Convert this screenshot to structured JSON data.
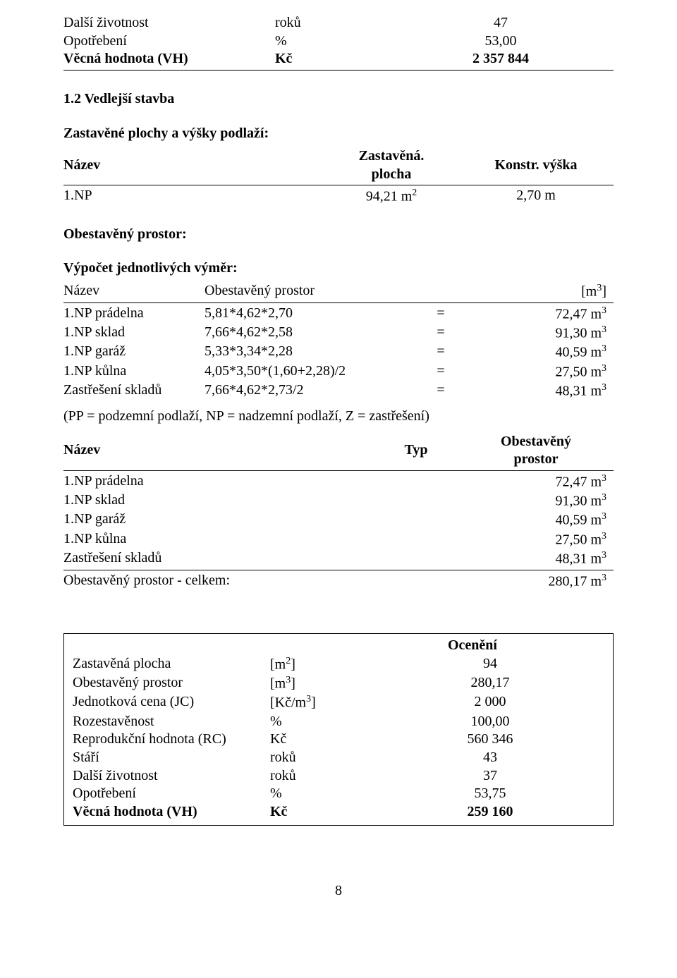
{
  "top_block": {
    "rows": [
      {
        "label": "Další životnost",
        "unit": "roků",
        "value": "47",
        "bold": false
      },
      {
        "label": "Opotřebení",
        "unit": "%",
        "value": "53,00",
        "bold": false
      },
      {
        "label": "Věcná hodnota (VH)",
        "unit": "Kč",
        "value": "2 357 844",
        "bold": true
      }
    ]
  },
  "section": {
    "title": "1.2 Vedlejší stavba",
    "sub_zastavene": "Zastavěné plochy a výšky podlaží:"
  },
  "header_table": {
    "h_nazev": "Název",
    "h_zastavena_top": "Zastavěná.",
    "h_zastavena_bot": "plocha",
    "h_konstr": "Konstr. výška",
    "row": {
      "c1": "1.NP",
      "c2": "94,21 m",
      "c2_sup": "2",
      "c3": "2,70 m"
    }
  },
  "obestaveny_header": "Obestavěný prostor:",
  "vypocet_header": "Výpočet jednotlivých výměr:",
  "vypocet_table": {
    "h_nazev": "Název",
    "h_obest": "Obestavěný prostor",
    "h_unit": "[m",
    "h_unit_sup": "3",
    "h_unit_close": "]",
    "rows": [
      {
        "c1": "1.NP prádelna",
        "c2": "5,81*4,62*2,70",
        "eq": "=",
        "val": "72,47 m",
        "sup": "3"
      },
      {
        "c1": "1.NP sklad",
        "c2": "7,66*4,62*2,58",
        "eq": "=",
        "val": "91,30 m",
        "sup": "3"
      },
      {
        "c1": "1.NP garáž",
        "c2": "5,33*3,34*2,28",
        "eq": "=",
        "val": "40,59 m",
        "sup": "3"
      },
      {
        "c1": "1.NP kůlna",
        "c2": "4,05*3,50*(1,60+2,28)/2",
        "eq": "=",
        "val": "27,50 m",
        "sup": "3"
      },
      {
        "c1": "Zastřešení skladů",
        "c2": "7,66*4,62*2,73/2",
        "eq": "=",
        "val": "48,31 m",
        "sup": "3"
      }
    ]
  },
  "pp_note": "(PP = podzemní podlaží, NP = nadzemní podlaží, Z = zastřešení)",
  "obest_table": {
    "h_nazev": "Název",
    "h_typ": "Typ",
    "h_ob_top": "Obestavěný",
    "h_ob_bot": "prostor",
    "rows": [
      {
        "c1": "1.NP prádelna",
        "val": "72,47 m",
        "sup": "3"
      },
      {
        "c1": "1.NP sklad",
        "val": "91,30 m",
        "sup": "3"
      },
      {
        "c1": "1.NP garáž",
        "val": "40,59 m",
        "sup": "3"
      },
      {
        "c1": "1.NP kůlna",
        "val": "27,50 m",
        "sup": "3"
      },
      {
        "c1": "Zastřešení skladů",
        "val": "48,31 m",
        "sup": "3"
      }
    ],
    "total_label": "Obestavěný prostor - celkem:",
    "total_val": "280,17 m",
    "total_sup": "3"
  },
  "oceneni": {
    "title": "Ocenění",
    "rows": [
      {
        "label": "Zastavěná plocha",
        "unit_pre": "[m",
        "unit_sup": "2",
        "unit_post": "]",
        "value": "94",
        "bold": false
      },
      {
        "label": "Obestavěný prostor",
        "unit_pre": "[m",
        "unit_sup": "3",
        "unit_post": "]",
        "value": "280,17",
        "bold": false
      },
      {
        "label": "Jednotková cena (JC)",
        "unit_pre": "[Kč/m",
        "unit_sup": "3",
        "unit_post": "]",
        "value": "2 000",
        "bold": false
      },
      {
        "label": "Rozestavěnost",
        "unit_pre": "%",
        "unit_sup": "",
        "unit_post": "",
        "value": "100,00",
        "bold": false
      },
      {
        "label": "Reprodukční hodnota (RC)",
        "unit_pre": "Kč",
        "unit_sup": "",
        "unit_post": "",
        "value": "560 346",
        "bold": false
      },
      {
        "label": "Stáří",
        "unit_pre": "roků",
        "unit_sup": "",
        "unit_post": "",
        "value": "43",
        "bold": false
      },
      {
        "label": "Další životnost",
        "unit_pre": "roků",
        "unit_sup": "",
        "unit_post": "",
        "value": "37",
        "bold": false
      },
      {
        "label": "Opotřebení",
        "unit_pre": "%",
        "unit_sup": "",
        "unit_post": "",
        "value": "53,75",
        "bold": false
      },
      {
        "label": "Věcná hodnota (VH)",
        "unit_pre": "Kč",
        "unit_sup": "",
        "unit_post": "",
        "value": "259 160",
        "bold": true
      }
    ]
  },
  "page_number": "8"
}
